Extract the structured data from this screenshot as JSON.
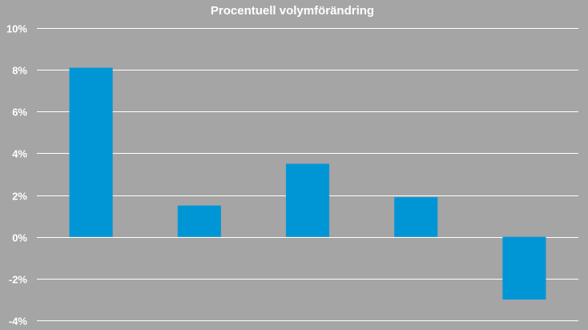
{
  "chart_data": {
    "type": "bar",
    "title": "Procentuell volymförändring",
    "xlabel": "",
    "ylabel": "",
    "categories": [
      "",
      "",
      "",
      "",
      ""
    ],
    "values": [
      8.1,
      1.5,
      3.5,
      1.9,
      -3.0
    ],
    "ylim": [
      -4,
      10
    ],
    "yticks": [
      10,
      8,
      6,
      4,
      2,
      0,
      -2,
      -4
    ],
    "ytick_labels": [
      "10%",
      "8%",
      "6%",
      "4%",
      "2%",
      "0%",
      "-2%",
      "-4%"
    ],
    "grid": true,
    "legend": "none",
    "colors": {
      "background": "#a5a5a5",
      "bar": "#0096d6",
      "grid": "#ffffff",
      "text": "#ffffff"
    }
  }
}
